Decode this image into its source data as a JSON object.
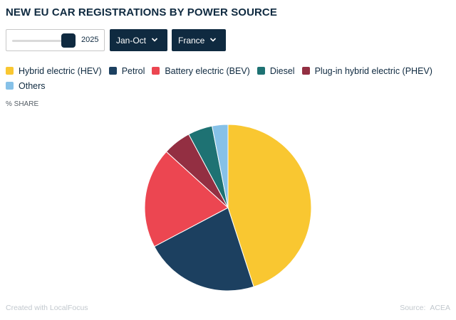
{
  "title": "NEW EU CAR REGISTRATIONS BY POWER SOURCE",
  "controls": {
    "year_slider": {
      "value": "2025"
    },
    "period_dropdown": {
      "selected": "Jan-Oct"
    },
    "country_dropdown": {
      "selected": "France"
    }
  },
  "unit_label": "% SHARE",
  "footer": {
    "credit": "Created with LocalFocus",
    "source_label": "Source:",
    "source_value": "ACEA"
  },
  "icons": [
    "chevron-down-icon",
    "slider-thumb"
  ],
  "chart_data": {
    "type": "pie",
    "categories": [
      "Hybrid electric (HEV)",
      "Petrol",
      "Battery electric (BEV)",
      "Diesel",
      "Plug-in hybrid electric (PHEV)",
      "Others"
    ],
    "values": [
      45.5,
      22.5,
      19.7,
      4.8,
      5.5,
      3.1
    ],
    "slice_order_clockwise_from_top": [
      "Hybrid electric (HEV)",
      "Petrol",
      "Battery electric (BEV)",
      "Plug-in hybrid electric (PHEV)",
      "Diesel",
      "Others"
    ],
    "colors": {
      "Hybrid electric (HEV)": "#f9c731",
      "Petrol": "#1c4060",
      "Battery electric (BEV)": "#ec4651",
      "Diesel": "#1e7273",
      "Plug-in hybrid electric (PHEV)": "#932f42",
      "Others": "#86c1e8"
    },
    "legend_position": "top"
  }
}
